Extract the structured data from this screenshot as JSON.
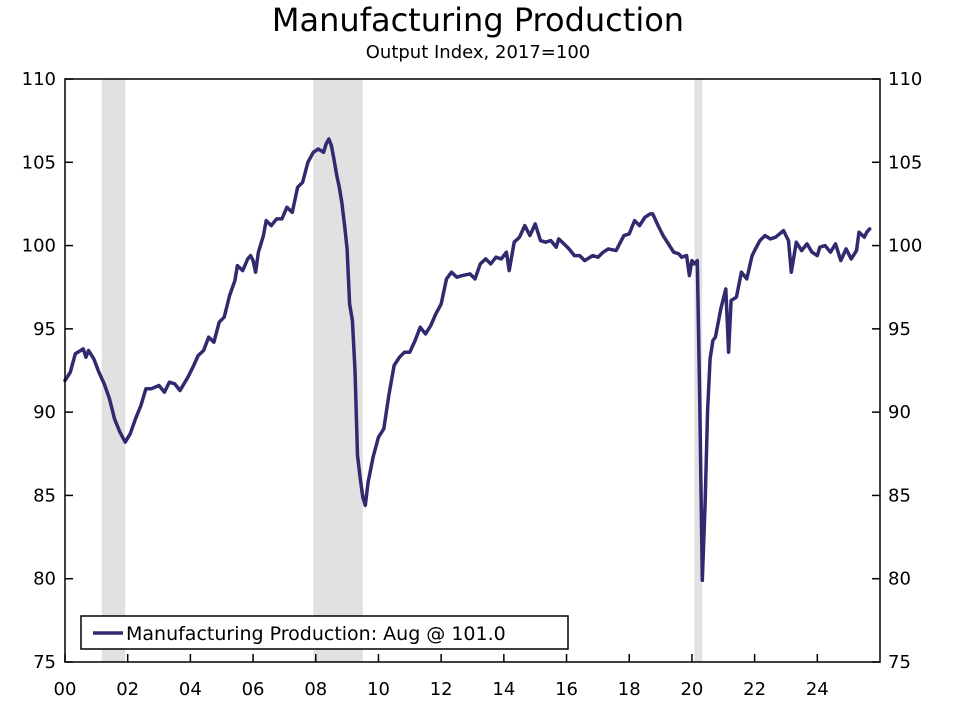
{
  "chart_data": {
    "type": "line",
    "title": "Manufacturing Production",
    "subtitle": "Output Index, 2017=100",
    "xlabel": "",
    "ylabel": "",
    "xlim": [
      2000,
      2026
    ],
    "ylim": [
      75,
      110
    ],
    "y_ticks": [
      75,
      80,
      85,
      90,
      95,
      100,
      105,
      110
    ],
    "y_tick_labels": [
      "75",
      "80",
      "85",
      "90",
      "95",
      "100",
      "105",
      "110"
    ],
    "x_ticks": [
      2000,
      2002,
      2004,
      2006,
      2008,
      2010,
      2012,
      2014,
      2016,
      2018,
      2020,
      2022,
      2024
    ],
    "x_tick_labels": [
      "00",
      "02",
      "04",
      "06",
      "08",
      "10",
      "12",
      "14",
      "16",
      "18",
      "20",
      "22",
      "24"
    ],
    "grid": false,
    "dual_y_axis": true,
    "legend_position": "bottom-left",
    "legend": [
      "Manufacturing Production: Aug @ 101.0"
    ],
    "recessions": [
      [
        2001.17,
        2001.92
      ],
      [
        2007.92,
        2009.5
      ],
      [
        2020.08,
        2020.33
      ]
    ],
    "colors": {
      "line": "#302a6e",
      "recession": "#e1e1e1",
      "axis": "#000000"
    },
    "series": [
      {
        "legend_label": "Manufacturing Production: Aug @ 101.0",
        "points": [
          [
            2000.0,
            91.9
          ],
          [
            2000.17,
            92.4
          ],
          [
            2000.33,
            93.5
          ],
          [
            2000.5,
            93.7
          ],
          [
            2000.58,
            93.8
          ],
          [
            2000.67,
            93.3
          ],
          [
            2000.75,
            93.7
          ],
          [
            2000.92,
            93.2
          ],
          [
            2001.08,
            92.4
          ],
          [
            2001.25,
            91.7
          ],
          [
            2001.42,
            90.8
          ],
          [
            2001.58,
            89.6
          ],
          [
            2001.75,
            88.8
          ],
          [
            2001.92,
            88.2
          ],
          [
            2002.08,
            88.7
          ],
          [
            2002.25,
            89.6
          ],
          [
            2002.42,
            90.4
          ],
          [
            2002.58,
            91.4
          ],
          [
            2002.75,
            91.4
          ],
          [
            2003.0,
            91.6
          ],
          [
            2003.17,
            91.2
          ],
          [
            2003.33,
            91.8
          ],
          [
            2003.5,
            91.7
          ],
          [
            2003.67,
            91.3
          ],
          [
            2003.92,
            92.1
          ],
          [
            2004.08,
            92.7
          ],
          [
            2004.25,
            93.4
          ],
          [
            2004.42,
            93.7
          ],
          [
            2004.58,
            94.5
          ],
          [
            2004.75,
            94.2
          ],
          [
            2004.92,
            95.4
          ],
          [
            2005.08,
            95.7
          ],
          [
            2005.25,
            97.0
          ],
          [
            2005.42,
            97.9
          ],
          [
            2005.5,
            98.8
          ],
          [
            2005.67,
            98.5
          ],
          [
            2005.83,
            99.2
          ],
          [
            2005.92,
            99.4
          ],
          [
            2006.0,
            99.1
          ],
          [
            2006.08,
            98.4
          ],
          [
            2006.17,
            99.6
          ],
          [
            2006.33,
            100.6
          ],
          [
            2006.42,
            101.5
          ],
          [
            2006.58,
            101.2
          ],
          [
            2006.75,
            101.6
          ],
          [
            2006.92,
            101.6
          ],
          [
            2007.08,
            102.3
          ],
          [
            2007.25,
            102.0
          ],
          [
            2007.42,
            103.5
          ],
          [
            2007.58,
            103.8
          ],
          [
            2007.75,
            105.0
          ],
          [
            2007.92,
            105.6
          ],
          [
            2008.08,
            105.8
          ],
          [
            2008.25,
            105.6
          ],
          [
            2008.33,
            106.1
          ],
          [
            2008.42,
            106.4
          ],
          [
            2008.5,
            106.0
          ],
          [
            2008.58,
            105.2
          ],
          [
            2008.67,
            104.2
          ],
          [
            2008.75,
            103.5
          ],
          [
            2008.83,
            102.6
          ],
          [
            2008.92,
            101.2
          ],
          [
            2009.0,
            99.8
          ],
          [
            2009.08,
            96.5
          ],
          [
            2009.17,
            95.5
          ],
          [
            2009.25,
            92.5
          ],
          [
            2009.33,
            87.4
          ],
          [
            2009.42,
            86.0
          ],
          [
            2009.5,
            84.9
          ],
          [
            2009.58,
            84.4
          ],
          [
            2009.67,
            85.8
          ],
          [
            2009.83,
            87.3
          ],
          [
            2010.0,
            88.5
          ],
          [
            2010.17,
            89.0
          ],
          [
            2010.33,
            91.0
          ],
          [
            2010.5,
            92.8
          ],
          [
            2010.67,
            93.3
          ],
          [
            2010.83,
            93.6
          ],
          [
            2011.0,
            93.6
          ],
          [
            2011.17,
            94.3
          ],
          [
            2011.33,
            95.1
          ],
          [
            2011.5,
            94.7
          ],
          [
            2011.67,
            95.2
          ],
          [
            2011.83,
            95.9
          ],
          [
            2012.0,
            96.5
          ],
          [
            2012.17,
            98.0
          ],
          [
            2012.33,
            98.4
          ],
          [
            2012.5,
            98.1
          ],
          [
            2012.67,
            98.2
          ],
          [
            2012.92,
            98.3
          ],
          [
            2013.08,
            98.0
          ],
          [
            2013.25,
            98.9
          ],
          [
            2013.42,
            99.2
          ],
          [
            2013.58,
            98.9
          ],
          [
            2013.75,
            99.3
          ],
          [
            2013.92,
            99.2
          ],
          [
            2014.08,
            99.6
          ],
          [
            2014.17,
            98.5
          ],
          [
            2014.33,
            100.2
          ],
          [
            2014.5,
            100.5
          ],
          [
            2014.67,
            101.2
          ],
          [
            2014.83,
            100.6
          ],
          [
            2015.0,
            101.3
          ],
          [
            2015.17,
            100.3
          ],
          [
            2015.33,
            100.2
          ],
          [
            2015.5,
            100.3
          ],
          [
            2015.67,
            99.9
          ],
          [
            2015.75,
            100.4
          ],
          [
            2015.92,
            100.1
          ],
          [
            2016.08,
            99.8
          ],
          [
            2016.25,
            99.4
          ],
          [
            2016.42,
            99.4
          ],
          [
            2016.58,
            99.1
          ],
          [
            2016.83,
            99.4
          ],
          [
            2017.0,
            99.3
          ],
          [
            2017.17,
            99.6
          ],
          [
            2017.33,
            99.8
          ],
          [
            2017.58,
            99.7
          ],
          [
            2017.83,
            100.6
          ],
          [
            2018.0,
            100.7
          ],
          [
            2018.17,
            101.5
          ],
          [
            2018.33,
            101.2
          ],
          [
            2018.5,
            101.7
          ],
          [
            2018.67,
            101.9
          ],
          [
            2018.75,
            101.9
          ],
          [
            2018.92,
            101.2
          ],
          [
            2019.08,
            100.6
          ],
          [
            2019.25,
            100.1
          ],
          [
            2019.42,
            99.6
          ],
          [
            2019.58,
            99.5
          ],
          [
            2019.67,
            99.3
          ],
          [
            2019.83,
            99.4
          ],
          [
            2019.92,
            98.2
          ],
          [
            2020.0,
            99.1
          ],
          [
            2020.08,
            98.9
          ],
          [
            2020.17,
            99.1
          ],
          [
            2020.25,
            90.5
          ],
          [
            2020.33,
            79.9
          ],
          [
            2020.42,
            84.5
          ],
          [
            2020.5,
            90.1
          ],
          [
            2020.58,
            93.2
          ],
          [
            2020.67,
            94.3
          ],
          [
            2020.75,
            94.5
          ],
          [
            2020.92,
            96.2
          ],
          [
            2021.08,
            97.4
          ],
          [
            2021.17,
            93.6
          ],
          [
            2021.25,
            96.7
          ],
          [
            2021.42,
            96.9
          ],
          [
            2021.58,
            98.4
          ],
          [
            2021.75,
            98.0
          ],
          [
            2021.92,
            99.4
          ],
          [
            2022.0,
            99.7
          ],
          [
            2022.17,
            100.3
          ],
          [
            2022.33,
            100.6
          ],
          [
            2022.5,
            100.4
          ],
          [
            2022.67,
            100.5
          ],
          [
            2022.92,
            100.9
          ],
          [
            2023.08,
            100.3
          ],
          [
            2023.17,
            98.4
          ],
          [
            2023.33,
            100.2
          ],
          [
            2023.5,
            99.7
          ],
          [
            2023.67,
            100.1
          ],
          [
            2023.83,
            99.6
          ],
          [
            2024.0,
            99.4
          ],
          [
            2024.08,
            99.9
          ],
          [
            2024.25,
            100.0
          ],
          [
            2024.42,
            99.6
          ],
          [
            2024.58,
            100.1
          ],
          [
            2024.75,
            99.1
          ],
          [
            2024.92,
            99.8
          ],
          [
            2025.08,
            99.2
          ],
          [
            2025.25,
            99.7
          ],
          [
            2025.33,
            100.8
          ],
          [
            2025.5,
            100.5
          ],
          [
            2025.58,
            100.8
          ],
          [
            2025.67,
            101.0
          ]
        ]
      }
    ]
  }
}
